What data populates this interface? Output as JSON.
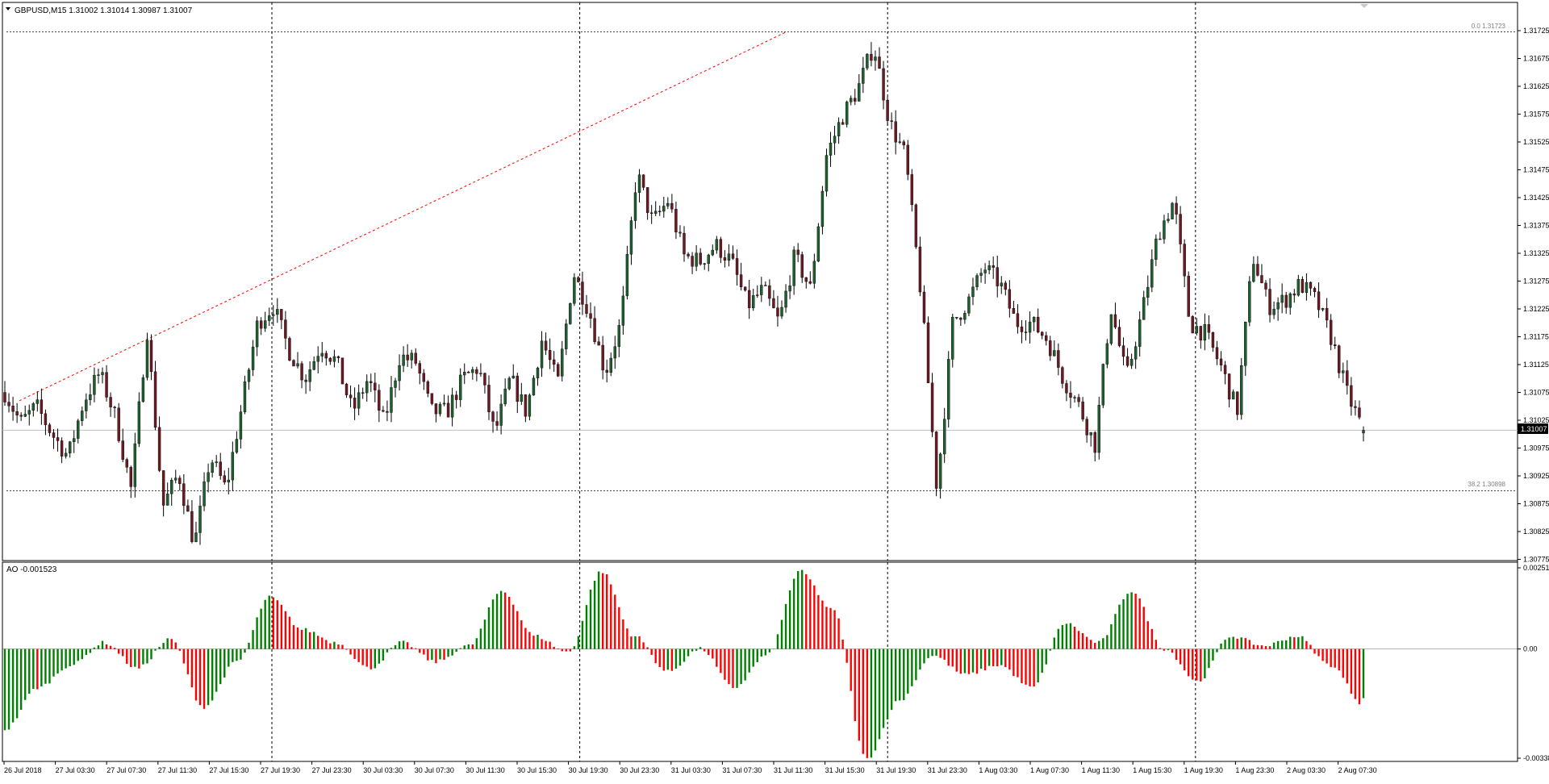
{
  "window": {
    "symbol_header": "GBPUSD,M15  1.31002 1.31014 1.30987 1.31007",
    "menu_icon": "triangle-down-icon"
  },
  "price_panel": {
    "current_price_label": "1.31007",
    "fib_labels": {
      "top": "0.0 1.31723",
      "bottom": "38.2 1.30898"
    },
    "y_axis_ticks": [
      "1.31725",
      "1.31675",
      "1.31625",
      "1.31575",
      "1.31525",
      "1.31475",
      "1.31425",
      "1.31375",
      "1.31325",
      "1.31275",
      "1.31225",
      "1.31175",
      "1.31125",
      "1.31075",
      "1.31025",
      "1.30975",
      "1.30925",
      "1.30875",
      "1.30825",
      "1.30775"
    ]
  },
  "indicator_panel": {
    "title": "AO -0.001523",
    "y_axis_ticks": [
      "0.002513",
      "0.00",
      "-0.003382"
    ]
  },
  "time_axis": {
    "labels": [
      "26 Jul 2018",
      "27 Jul 03:30",
      "27 Jul 07:30",
      "27 Jul 11:30",
      "27 Jul 15:30",
      "27 Jul 19:30",
      "27 Jul 23:30",
      "30 Jul 03:30",
      "30 Jul 07:30",
      "30 Jul 11:30",
      "30 Jul 15:30",
      "30 Jul 19:30",
      "30 Jul 23:30",
      "31 Jul 03:30",
      "31 Jul 07:30",
      "31 Jul 11:30",
      "31 Jul 15:30",
      "31 Jul 19:30",
      "31 Jul 23:30",
      "1 Aug 03:30",
      "1 Aug 07:30",
      "1 Aug 11:30",
      "1 Aug 15:30",
      "1 Aug 19:30",
      "1 Aug 23:30",
      "2 Aug 03:30",
      "2 Aug 07:30"
    ]
  },
  "colors": {
    "bull_candle": "#1f5f2f",
    "bear_candle": "#6b1a24",
    "ao_up": "#008000",
    "ao_down": "#ff0000",
    "trendline": "#ff0000",
    "grid": "#000000"
  },
  "chart_data": {
    "type": "candlestick",
    "symbol": "GBPUSD",
    "timeframe": "M15",
    "x_range": [
      "26 Jul 2018",
      "2 Aug 07:30"
    ],
    "ylim": [
      1.30775,
      1.31725
    ],
    "last": {
      "open": 1.31002,
      "high": 1.31014,
      "low": 1.30987,
      "close": 1.31007
    },
    "anchor_path": [
      1.31075,
      1.3102,
      1.3105,
      1.31,
      1.3096,
      1.3106,
      1.3111,
      1.3103,
      1.309,
      1.3119,
      1.3087,
      1.3093,
      1.308,
      1.3096,
      1.309,
      1.3105,
      1.312,
      1.3123,
      1.3115,
      1.311,
      1.3116,
      1.3113,
      1.3104,
      1.311,
      1.3102,
      1.3114,
      1.3113,
      1.3104,
      1.3104,
      1.311,
      1.3112,
      1.31,
      1.311,
      1.3104,
      1.3117,
      1.3109,
      1.3129,
      1.3122,
      1.3111,
      1.312,
      1.3147,
      1.3138,
      1.3142,
      1.3132,
      1.3131,
      1.3134,
      1.3131,
      1.3123,
      1.3126,
      1.312,
      1.3132,
      1.3126,
      1.315,
      1.3157,
      1.3162,
      1.317,
      1.3156,
      1.315,
      1.3125,
      1.309,
      1.312,
      1.3124,
      1.313,
      1.3127,
      1.312,
      1.312,
      1.3117,
      1.311,
      1.3105,
      1.3098,
      1.3123,
      1.311,
      1.3122,
      1.3136,
      1.3142,
      1.312,
      1.3118,
      1.3112,
      1.3104,
      1.3132,
      1.3123,
      1.3124,
      1.3127,
      1.3124,
      1.3117,
      1.3107,
      1.31007
    ],
    "ao": {
      "last": -0.001523,
      "ylim": [
        -0.003382,
        0.002513
      ],
      "anchor_path": [
        -0.0025,
        -0.0012,
        -0.0005,
        0.0002,
        -0.0006,
        0.0003,
        -0.0018,
        -0.0004,
        0.0016,
        0.0006,
        0.0002,
        -0.0006,
        0.0002,
        -0.0004,
        0.0001,
        0.0018,
        0.0004,
        -0.0001,
        0.0024,
        0.0004,
        -0.0007,
        0.0,
        -0.0012,
        -0.0002,
        0.0024,
        0.0012,
        -0.0034,
        -0.0016,
        -0.0002,
        -0.0008,
        -0.0005,
        -0.0012,
        0.0008,
        0.0002,
        0.0018,
        0.0,
        -0.001,
        0.0004,
        0.0001,
        0.0004,
        -0.0005,
        -0.0017
      ]
    },
    "fibonacci": [
      {
        "level": "0.0",
        "price": 1.31723
      },
      {
        "level": "38.2",
        "price": 1.30898
      }
    ],
    "trendline": {
      "from_price": 1.3106,
      "to_price": 1.31723
    }
  }
}
